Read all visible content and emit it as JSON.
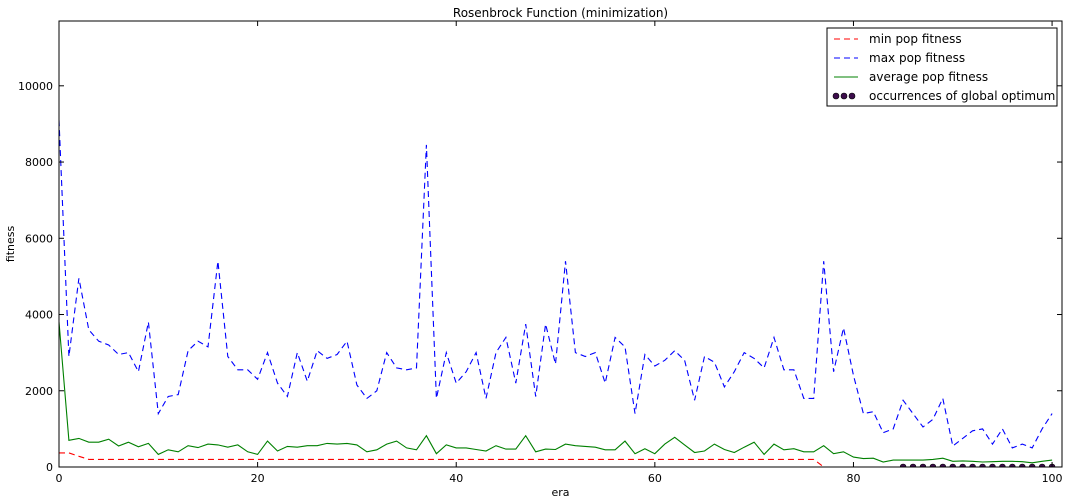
{
  "chart_data": {
    "type": "line",
    "title": "Rosenbrock Function (minimization)",
    "xlabel": "era",
    "ylabel": "fitness",
    "xlim": [
      0,
      101
    ],
    "ylim": [
      0,
      11700
    ],
    "xticks": [
      0,
      20,
      40,
      60,
      80,
      100
    ],
    "yticks": [
      0,
      2000,
      4000,
      6000,
      8000,
      10000
    ],
    "grid": false,
    "legend_position": "top-right",
    "series": [
      {
        "name": "min pop fitness",
        "style": "dashed",
        "color": "#ff0000",
        "x": [
          0,
          1,
          2,
          3,
          4,
          76,
          77,
          100
        ],
        "values": [
          370,
          370,
          280,
          200,
          200,
          200,
          0,
          0
        ]
      },
      {
        "name": "max pop fitness",
        "style": "dashed",
        "color": "#0000ff",
        "x": [
          0,
          1,
          2,
          3,
          4,
          5,
          6,
          7,
          8,
          9,
          10,
          11,
          12,
          13,
          14,
          15,
          16,
          17,
          18,
          19,
          20,
          21,
          22,
          23,
          24,
          25,
          26,
          27,
          28,
          29,
          30,
          31,
          32,
          33,
          34,
          35,
          36,
          37,
          38,
          39,
          40,
          41,
          42,
          43,
          44,
          45,
          46,
          47,
          48,
          49,
          50,
          51,
          52,
          53,
          54,
          55,
          56,
          57,
          58,
          59,
          60,
          61,
          62,
          63,
          64,
          65,
          66,
          67,
          68,
          69,
          70,
          71,
          72,
          73,
          74,
          75,
          76,
          77,
          78,
          79,
          80,
          81,
          82,
          83,
          84,
          85,
          86,
          87,
          88,
          89,
          90,
          91,
          92,
          93,
          94,
          95,
          96,
          97,
          98,
          99,
          100
        ],
        "values": [
          9100,
          2900,
          4950,
          3600,
          3300,
          3200,
          2950,
          3000,
          2500,
          3800,
          1400,
          1850,
          1900,
          3050,
          3300,
          3150,
          5400,
          2900,
          2550,
          2550,
          2300,
          3000,
          2200,
          1850,
          3000,
          2250,
          3050,
          2850,
          2950,
          3300,
          2150,
          1800,
          2000,
          3000,
          2600,
          2550,
          2600,
          8450,
          1800,
          3000,
          2200,
          2500,
          3000,
          1800,
          3000,
          3400,
          2200,
          3750,
          1850,
          3750,
          2700,
          5400,
          3000,
          2900,
          3000,
          2200,
          3400,
          3150,
          1400,
          2950,
          2650,
          2800,
          3050,
          2800,
          1750,
          2900,
          2750,
          2100,
          2500,
          3000,
          2850,
          2600,
          3400,
          2550,
          2550,
          1800,
          1800,
          5400,
          2500,
          3650,
          2400,
          1400,
          1450,
          900,
          1000,
          1750,
          1400,
          1050,
          1250,
          1800,
          550,
          750,
          950,
          1000,
          600,
          1000,
          500,
          600,
          500,
          1000,
          1400
        ]
      },
      {
        "name": "average pop fitness",
        "style": "solid",
        "color": "#008000",
        "x": [
          0,
          1,
          2,
          3,
          4,
          5,
          6,
          7,
          8,
          9,
          10,
          11,
          12,
          13,
          14,
          15,
          16,
          17,
          18,
          19,
          20,
          21,
          22,
          23,
          24,
          25,
          26,
          27,
          28,
          29,
          30,
          31,
          32,
          33,
          34,
          35,
          36,
          37,
          38,
          39,
          40,
          41,
          42,
          43,
          44,
          45,
          46,
          47,
          48,
          49,
          50,
          51,
          52,
          53,
          54,
          55,
          56,
          57,
          58,
          59,
          60,
          61,
          62,
          63,
          64,
          65,
          66,
          67,
          68,
          69,
          70,
          71,
          72,
          73,
          74,
          75,
          76,
          77,
          78,
          79,
          80,
          81,
          82,
          83,
          84,
          85,
          86,
          87,
          88,
          89,
          90,
          91,
          92,
          93,
          94,
          95,
          96,
          97,
          98,
          99,
          100
        ],
        "values": [
          3800,
          700,
          750,
          650,
          650,
          730,
          550,
          650,
          530,
          620,
          330,
          450,
          400,
          560,
          510,
          600,
          580,
          520,
          580,
          400,
          330,
          680,
          420,
          540,
          520,
          560,
          560,
          620,
          600,
          620,
          580,
          400,
          450,
          600,
          680,
          500,
          450,
          820,
          350,
          580,
          500,
          500,
          460,
          420,
          560,
          470,
          470,
          820,
          400,
          470,
          460,
          600,
          560,
          540,
          520,
          450,
          450,
          680,
          350,
          480,
          350,
          600,
          780,
          580,
          380,
          420,
          600,
          460,
          380,
          520,
          650,
          330,
          600,
          450,
          480,
          400,
          400,
          560,
          350,
          400,
          260,
          220,
          230,
          130,
          180,
          180,
          180,
          180,
          200,
          230,
          150,
          160,
          150,
          130,
          140,
          150,
          150,
          140,
          110,
          150,
          180
        ]
      },
      {
        "name": "occurrences of global optimum",
        "style": "markers",
        "color": "#3d0d4c",
        "x": [
          85,
          86,
          87,
          88,
          89,
          90,
          91,
          92,
          93,
          94,
          95,
          96,
          97,
          98,
          99,
          100
        ],
        "values": [
          0,
          0,
          0,
          0,
          0,
          0,
          0,
          0,
          0,
          0,
          0,
          0,
          0,
          0,
          0,
          0
        ]
      }
    ]
  }
}
